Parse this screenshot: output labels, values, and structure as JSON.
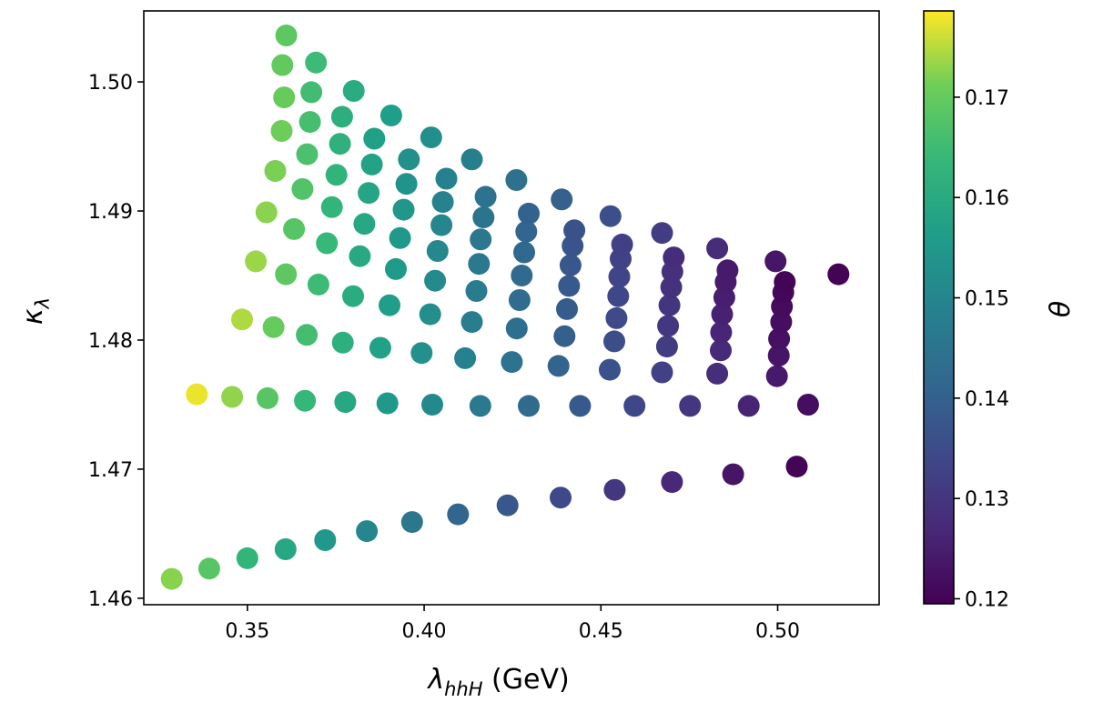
{
  "chart_data": {
    "type": "scatter",
    "xlabel_main": "λ",
    "xlabel_sub": "hhH",
    "xlabel_unit": " (GeV)",
    "ylabel_main": "κ",
    "ylabel_sub": "λ",
    "colorbar_label": "θ",
    "colormap": "viridis",
    "xlim": [
      0.3207,
      0.5287
    ],
    "ylim": [
      1.4595,
      1.5055
    ],
    "clim": [
      0.1195,
      0.1786
    ],
    "xticks": [
      "0.35",
      "0.40",
      "0.45",
      "0.50"
    ],
    "yticks": [
      "1.46",
      "1.47",
      "1.48",
      "1.49",
      "1.50"
    ],
    "cticks": [
      "0.12",
      "0.13",
      "0.14",
      "0.15",
      "0.16",
      "0.17"
    ],
    "points": [
      {
        "x": 0.3286,
        "y": 1.4615,
        "c": 0.1725
      },
      {
        "x": 0.3392,
        "y": 1.4623,
        "c": 0.1683
      },
      {
        "x": 0.35,
        "y": 1.4631,
        "c": 0.1632
      },
      {
        "x": 0.3608,
        "y": 1.4638,
        "c": 0.159
      },
      {
        "x": 0.372,
        "y": 1.4645,
        "c": 0.1551
      },
      {
        "x": 0.3838,
        "y": 1.4652,
        "c": 0.1504
      },
      {
        "x": 0.3966,
        "y": 1.4659,
        "c": 0.1458
      },
      {
        "x": 0.4096,
        "y": 1.4665,
        "c": 0.1413
      },
      {
        "x": 0.4236,
        "y": 1.4672,
        "c": 0.1378
      },
      {
        "x": 0.4386,
        "y": 1.4678,
        "c": 0.1342
      },
      {
        "x": 0.4539,
        "y": 1.4684,
        "c": 0.1303
      },
      {
        "x": 0.4701,
        "y": 1.469,
        "c": 0.127
      },
      {
        "x": 0.4874,
        "y": 1.4696,
        "c": 0.1232
      },
      {
        "x": 0.5054,
        "y": 1.4702,
        "c": 0.1202
      },
      {
        "x": 0.3357,
        "y": 1.4758,
        "c": 0.1776
      },
      {
        "x": 0.3457,
        "y": 1.4756,
        "c": 0.173
      },
      {
        "x": 0.3557,
        "y": 1.4755,
        "c": 0.1683
      },
      {
        "x": 0.3663,
        "y": 1.4753,
        "c": 0.1638
      },
      {
        "x": 0.3777,
        "y": 1.4752,
        "c": 0.1595
      },
      {
        "x": 0.3896,
        "y": 1.4751,
        "c": 0.1551
      },
      {
        "x": 0.4023,
        "y": 1.475,
        "c": 0.1508
      },
      {
        "x": 0.4159,
        "y": 1.4749,
        "c": 0.1466
      },
      {
        "x": 0.4296,
        "y": 1.4749,
        "c": 0.1425
      },
      {
        "x": 0.4441,
        "y": 1.4749,
        "c": 0.1384
      },
      {
        "x": 0.4595,
        "y": 1.4749,
        "c": 0.1341
      },
      {
        "x": 0.4752,
        "y": 1.4749,
        "c": 0.1302
      },
      {
        "x": 0.4918,
        "y": 1.4749,
        "c": 0.1261
      },
      {
        "x": 0.5086,
        "y": 1.475,
        "c": 0.1219
      },
      {
        "x": 0.3485,
        "y": 1.4816,
        "c": 0.1745
      },
      {
        "x": 0.3574,
        "y": 1.481,
        "c": 0.1701
      },
      {
        "x": 0.3668,
        "y": 1.4804,
        "c": 0.1659
      },
      {
        "x": 0.377,
        "y": 1.4798,
        "c": 0.1614
      },
      {
        "x": 0.3876,
        "y": 1.4794,
        "c": 0.1573
      },
      {
        "x": 0.3993,
        "y": 1.479,
        "c": 0.1531
      },
      {
        "x": 0.4116,
        "y": 1.4786,
        "c": 0.1489
      },
      {
        "x": 0.4248,
        "y": 1.4783,
        "c": 0.1446
      },
      {
        "x": 0.438,
        "y": 1.478,
        "c": 0.1406
      },
      {
        "x": 0.4525,
        "y": 1.4777,
        "c": 0.1365
      },
      {
        "x": 0.4673,
        "y": 1.4775,
        "c": 0.1324
      },
      {
        "x": 0.4829,
        "y": 1.4774,
        "c": 0.1283
      },
      {
        "x": 0.4998,
        "y": 1.4772,
        "c": 0.1241
      },
      {
        "x": 0.3524,
        "y": 1.4861,
        "c": 0.1735
      },
      {
        "x": 0.3609,
        "y": 1.4851,
        "c": 0.1691
      },
      {
        "x": 0.3701,
        "y": 1.4843,
        "c": 0.1648
      },
      {
        "x": 0.3799,
        "y": 1.4834,
        "c": 0.1606
      },
      {
        "x": 0.3902,
        "y": 1.4827,
        "c": 0.1564
      },
      {
        "x": 0.4017,
        "y": 1.482,
        "c": 0.1522
      },
      {
        "x": 0.4135,
        "y": 1.4814,
        "c": 0.148
      },
      {
        "x": 0.4262,
        "y": 1.4809,
        "c": 0.1437
      },
      {
        "x": 0.4397,
        "y": 1.4803,
        "c": 0.1396
      },
      {
        "x": 0.4538,
        "y": 1.4799,
        "c": 0.1354
      },
      {
        "x": 0.4687,
        "y": 1.4795,
        "c": 0.1313
      },
      {
        "x": 0.4839,
        "y": 1.4792,
        "c": 0.1273
      },
      {
        "x": 0.5003,
        "y": 1.4788,
        "c": 0.1233
      },
      {
        "x": 0.3554,
        "y": 1.4899,
        "c": 0.1726
      },
      {
        "x": 0.3632,
        "y": 1.4886,
        "c": 0.1683
      },
      {
        "x": 0.3725,
        "y": 1.4875,
        "c": 0.164
      },
      {
        "x": 0.3818,
        "y": 1.4865,
        "c": 0.1598
      },
      {
        "x": 0.392,
        "y": 1.4855,
        "c": 0.1556
      },
      {
        "x": 0.4031,
        "y": 1.4846,
        "c": 0.1513
      },
      {
        "x": 0.4148,
        "y": 1.4838,
        "c": 0.1471
      },
      {
        "x": 0.427,
        "y": 1.4831,
        "c": 0.1429
      },
      {
        "x": 0.4404,
        "y": 1.4824,
        "c": 0.1387
      },
      {
        "x": 0.4544,
        "y": 1.4817,
        "c": 0.1345
      },
      {
        "x": 0.469,
        "y": 1.4811,
        "c": 0.1305
      },
      {
        "x": 0.484,
        "y": 1.4806,
        "c": 0.1264
      },
      {
        "x": 0.5004,
        "y": 1.4801,
        "c": 0.1225
      },
      {
        "x": 0.3579,
        "y": 1.4931,
        "c": 0.1718
      },
      {
        "x": 0.3656,
        "y": 1.4917,
        "c": 0.1676
      },
      {
        "x": 0.3739,
        "y": 1.4903,
        "c": 0.1633
      },
      {
        "x": 0.3831,
        "y": 1.489,
        "c": 0.1591
      },
      {
        "x": 0.3932,
        "y": 1.4879,
        "c": 0.1549
      },
      {
        "x": 0.4038,
        "y": 1.4869,
        "c": 0.1507
      },
      {
        "x": 0.4155,
        "y": 1.4859,
        "c": 0.1465
      },
      {
        "x": 0.4276,
        "y": 1.485,
        "c": 0.1423
      },
      {
        "x": 0.441,
        "y": 1.4842,
        "c": 0.1381
      },
      {
        "x": 0.4549,
        "y": 1.4834,
        "c": 0.1339
      },
      {
        "x": 0.4694,
        "y": 1.4827,
        "c": 0.1299
      },
      {
        "x": 0.4843,
        "y": 1.482,
        "c": 0.1258
      },
      {
        "x": 0.501,
        "y": 1.4814,
        "c": 0.1219
      },
      {
        "x": 0.3597,
        "y": 1.4962,
        "c": 0.171
      },
      {
        "x": 0.3669,
        "y": 1.4944,
        "c": 0.1668
      },
      {
        "x": 0.3752,
        "y": 1.4928,
        "c": 0.1626
      },
      {
        "x": 0.3843,
        "y": 1.4914,
        "c": 0.1584
      },
      {
        "x": 0.3942,
        "y": 1.4901,
        "c": 0.1542
      },
      {
        "x": 0.4049,
        "y": 1.4889,
        "c": 0.15
      },
      {
        "x": 0.416,
        "y": 1.4878,
        "c": 0.1459
      },
      {
        "x": 0.4283,
        "y": 1.4868,
        "c": 0.1417
      },
      {
        "x": 0.4414,
        "y": 1.4858,
        "c": 0.1375
      },
      {
        "x": 0.4552,
        "y": 1.4849,
        "c": 0.1333
      },
      {
        "x": 0.4699,
        "y": 1.4841,
        "c": 0.1292
      },
      {
        "x": 0.4849,
        "y": 1.4833,
        "c": 0.1252
      },
      {
        "x": 0.5012,
        "y": 1.4826,
        "c": 0.1213
      },
      {
        "x": 0.3604,
        "y": 1.4988,
        "c": 0.1703
      },
      {
        "x": 0.3677,
        "y": 1.4969,
        "c": 0.1661
      },
      {
        "x": 0.3762,
        "y": 1.4952,
        "c": 0.1619
      },
      {
        "x": 0.3852,
        "y": 1.4936,
        "c": 0.1577
      },
      {
        "x": 0.395,
        "y": 1.4921,
        "c": 0.1536
      },
      {
        "x": 0.4053,
        "y": 1.4907,
        "c": 0.1494
      },
      {
        "x": 0.4168,
        "y": 1.4895,
        "c": 0.1452
      },
      {
        "x": 0.4289,
        "y": 1.4884,
        "c": 0.1411
      },
      {
        "x": 0.442,
        "y": 1.4873,
        "c": 0.1369
      },
      {
        "x": 0.4556,
        "y": 1.4863,
        "c": 0.1328
      },
      {
        "x": 0.4702,
        "y": 1.4853,
        "c": 0.1287
      },
      {
        "x": 0.4853,
        "y": 1.4845,
        "c": 0.1247
      },
      {
        "x": 0.5016,
        "y": 1.4837,
        "c": 0.1207
      },
      {
        "x": 0.3599,
        "y": 1.5013,
        "c": 0.1697
      },
      {
        "x": 0.3681,
        "y": 1.4992,
        "c": 0.1655
      },
      {
        "x": 0.3768,
        "y": 1.4973,
        "c": 0.1613
      },
      {
        "x": 0.3859,
        "y": 1.4956,
        "c": 0.1571
      },
      {
        "x": 0.3957,
        "y": 1.494,
        "c": 0.1529
      },
      {
        "x": 0.4063,
        "y": 1.4925,
        "c": 0.1488
      },
      {
        "x": 0.4174,
        "y": 1.4911,
        "c": 0.1446
      },
      {
        "x": 0.4296,
        "y": 1.4898,
        "c": 0.1405
      },
      {
        "x": 0.4425,
        "y": 1.4885,
        "c": 0.1363
      },
      {
        "x": 0.456,
        "y": 1.4874,
        "c": 0.1322
      },
      {
        "x": 0.4706,
        "y": 1.4864,
        "c": 0.1281
      },
      {
        "x": 0.4858,
        "y": 1.4854,
        "c": 0.1242
      },
      {
        "x": 0.502,
        "y": 1.4845,
        "c": 0.1202
      },
      {
        "x": 0.361,
        "y": 1.5036,
        "c": 0.169
      },
      {
        "x": 0.3694,
        "y": 1.5015,
        "c": 0.1648
      },
      {
        "x": 0.3801,
        "y": 1.4993,
        "c": 0.1606
      },
      {
        "x": 0.3907,
        "y": 1.4974,
        "c": 0.1565
      },
      {
        "x": 0.402,
        "y": 1.4957,
        "c": 0.1524
      },
      {
        "x": 0.4135,
        "y": 1.494,
        "c": 0.1482
      },
      {
        "x": 0.4261,
        "y": 1.4924,
        "c": 0.1441
      },
      {
        "x": 0.4389,
        "y": 1.4909,
        "c": 0.14
      },
      {
        "x": 0.4527,
        "y": 1.4896,
        "c": 0.1358
      },
      {
        "x": 0.4673,
        "y": 1.4883,
        "c": 0.1317
      },
      {
        "x": 0.4829,
        "y": 1.4871,
        "c": 0.1277
      },
      {
        "x": 0.4994,
        "y": 1.4861,
        "c": 0.1237
      },
      {
        "x": 0.5172,
        "y": 1.4851,
        "c": 0.1198
      }
    ]
  }
}
